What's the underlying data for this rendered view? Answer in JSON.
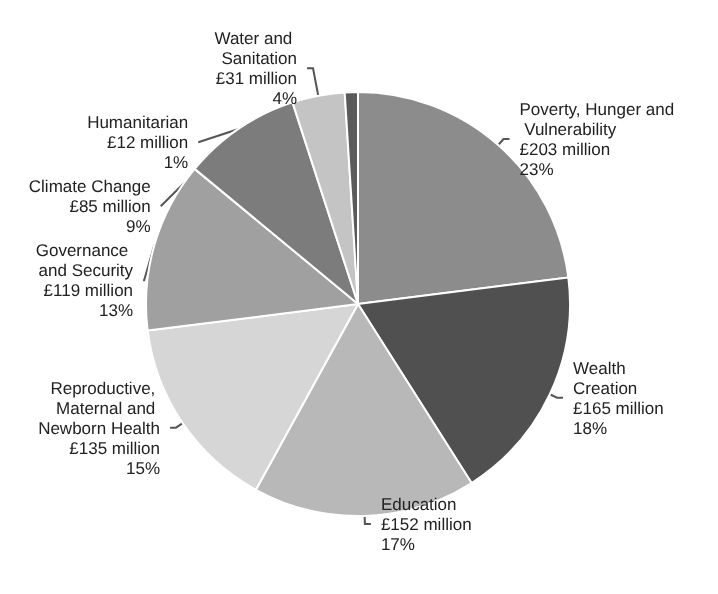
{
  "chart_data": {
    "type": "pie",
    "categories": [
      "Poverty, Hunger and Vulnerability",
      "Wealth Creation",
      "Education",
      "Reproductive, Maternal and Newborn Health",
      "Governance and Security",
      "Climate Change",
      "Water and Sanitation",
      "Humanitarian"
    ],
    "values": [
      23,
      18,
      17,
      15,
      13,
      9,
      4,
      1
    ],
    "value_labels": [
      "£203 million\n23%",
      "£165 million\n18%",
      "£152 million\n17%",
      "£135 million\n15%",
      "£119 million\n13%",
      "£85 million\n9%",
      "£31 million\n4%",
      "£12 million\n1%"
    ],
    "colors": [
      "#8c8c8c",
      "#505050",
      "#b8b8b8",
      "#d6d6d6",
      "#a0a0a0",
      "#7c7c7c",
      "#c4c4c4",
      "#5a5a5a"
    ],
    "legend": false
  }
}
